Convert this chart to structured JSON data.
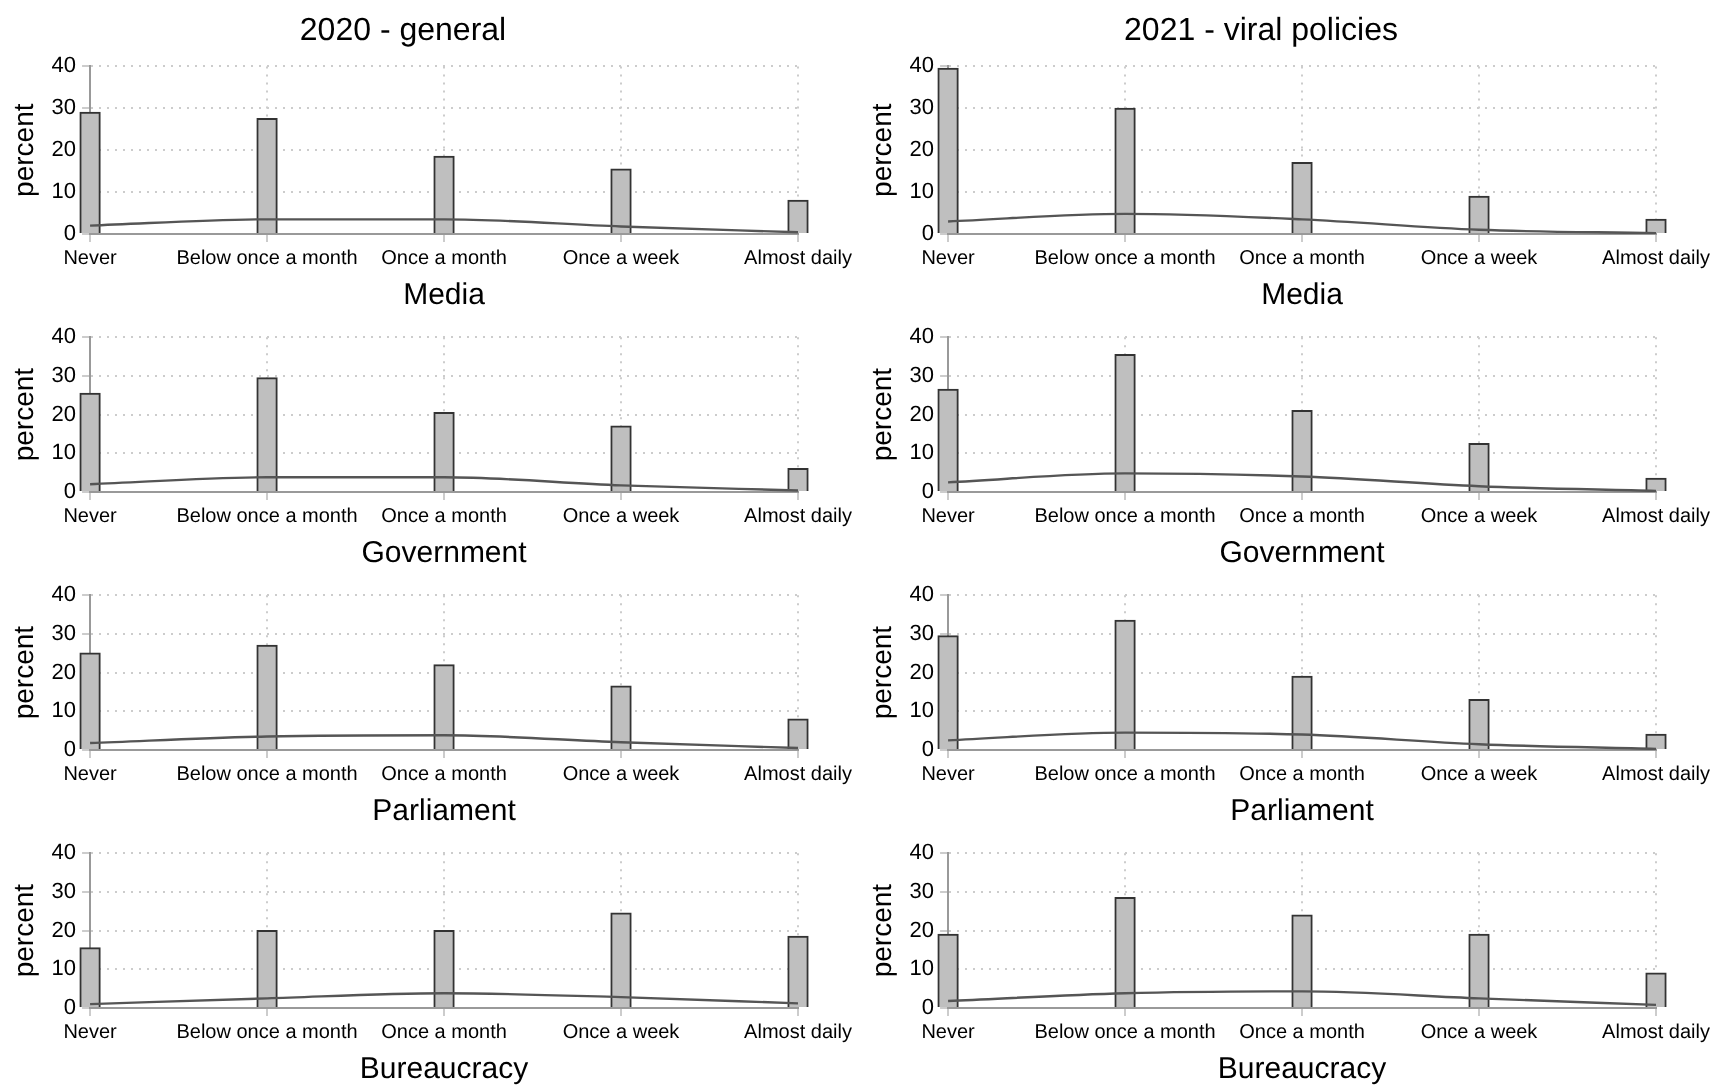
{
  "chart_data": [
    {
      "type": "bar",
      "title": "2020 - general",
      "xlabel": "Media",
      "ylabel": "percent",
      "categories": [
        "Never",
        "Below once a month",
        "Once a month",
        "Once a week",
        "Almost daily"
      ],
      "ylim": [
        0,
        40
      ],
      "yticks": [
        0,
        10,
        20,
        30,
        40
      ],
      "grid": true,
      "marker": "none",
      "series": [
        {
          "color": "#bfbfbf",
          "values": [
            29,
            27.5,
            18.5,
            15.5,
            8
          ]
        },
        {
          "type": "line",
          "color": "#555555",
          "values": [
            2,
            3.5,
            3.5,
            1.8,
            0.4
          ]
        }
      ]
    },
    {
      "type": "bar",
      "title": "2021 - viral policies",
      "xlabel": "Media",
      "ylabel": "percent",
      "categories": [
        "Never",
        "Below once a month",
        "Once a month",
        "Once a week",
        "Almost daily"
      ],
      "ylim": [
        0,
        40
      ],
      "yticks": [
        0,
        10,
        20,
        30,
        40
      ],
      "grid": true,
      "marker": "none",
      "series": [
        {
          "color": "#bfbfbf",
          "values": [
            39.5,
            30,
            17,
            9,
            3.5
          ]
        },
        {
          "type": "line",
          "color": "#555555",
          "values": [
            3,
            4.8,
            3.5,
            1,
            0.2
          ]
        }
      ]
    },
    {
      "type": "bar",
      "xlabel": "Government",
      "ylabel": "percent",
      "categories": [
        "Never",
        "Below once a month",
        "Once a month",
        "Once a week",
        "Almost daily"
      ],
      "ylim": [
        0,
        40
      ],
      "yticks": [
        0,
        10,
        20,
        30,
        40
      ],
      "grid": true,
      "marker": "none",
      "series": [
        {
          "color": "#bfbfbf",
          "values": [
            25.5,
            29.5,
            20.5,
            17,
            6
          ]
        },
        {
          "type": "line",
          "color": "#555555",
          "values": [
            2,
            3.8,
            3.8,
            1.7,
            0.4
          ]
        }
      ]
    },
    {
      "type": "bar",
      "xlabel": "Government",
      "ylabel": "percent",
      "categories": [
        "Never",
        "Below once a month",
        "Once a month",
        "Once a week",
        "Almost daily"
      ],
      "ylim": [
        0,
        40
      ],
      "yticks": [
        0,
        10,
        20,
        30,
        40
      ],
      "grid": true,
      "marker": "none",
      "series": [
        {
          "color": "#bfbfbf",
          "values": [
            26.5,
            35.5,
            21,
            12.5,
            3.5
          ]
        },
        {
          "type": "line",
          "color": "#555555",
          "values": [
            2.5,
            4.8,
            4,
            1.5,
            0.3
          ]
        }
      ]
    },
    {
      "type": "bar",
      "xlabel": "Parliament",
      "ylabel": "percent",
      "categories": [
        "Never",
        "Below once a month",
        "Once a month",
        "Once a week",
        "Almost daily"
      ],
      "ylim": [
        0,
        40
      ],
      "yticks": [
        0,
        10,
        20,
        30,
        40
      ],
      "grid": true,
      "marker": "none",
      "series": [
        {
          "color": "#bfbfbf",
          "values": [
            25,
            27,
            22,
            16.5,
            8
          ]
        },
        {
          "type": "line",
          "color": "#555555",
          "values": [
            1.8,
            3.5,
            3.8,
            2,
            0.5
          ]
        }
      ]
    },
    {
      "type": "bar",
      "xlabel": "Parliament",
      "ylabel": "percent",
      "categories": [
        "Never",
        "Below once a month",
        "Once a month",
        "Once a week",
        "Almost daily"
      ],
      "ylim": [
        0,
        40
      ],
      "yticks": [
        0,
        10,
        20,
        30,
        40
      ],
      "grid": true,
      "marker": "none",
      "series": [
        {
          "color": "#bfbfbf",
          "values": [
            29.5,
            33.5,
            19,
            13,
            4
          ]
        },
        {
          "type": "line",
          "color": "#555555",
          "values": [
            2.5,
            4.5,
            4,
            1.5,
            0.3
          ]
        }
      ]
    },
    {
      "type": "bar",
      "xlabel": "Bureaucracy",
      "ylabel": "percent",
      "categories": [
        "Never",
        "Below once a month",
        "Once a month",
        "Once a week",
        "Almost daily"
      ],
      "ylim": [
        0,
        40
      ],
      "yticks": [
        0,
        10,
        20,
        30,
        40
      ],
      "grid": true,
      "marker": "none",
      "series": [
        {
          "color": "#bfbfbf",
          "values": [
            15.5,
            20,
            20,
            24.5,
            18.5
          ]
        },
        {
          "type": "line",
          "color": "#555555",
          "values": [
            1,
            2.5,
            3.8,
            2.8,
            1.2
          ]
        }
      ]
    },
    {
      "type": "bar",
      "xlabel": "Bureaucracy",
      "ylabel": "percent",
      "categories": [
        "Never",
        "Below once a month",
        "Once a month",
        "Once a week",
        "Almost daily"
      ],
      "ylim": [
        0,
        40
      ],
      "yticks": [
        0,
        10,
        20,
        30,
        40
      ],
      "grid": true,
      "marker": "none",
      "series": [
        {
          "color": "#bfbfbf",
          "values": [
            19,
            28.5,
            24,
            19,
            9
          ]
        },
        {
          "type": "line",
          "color": "#555555",
          "values": [
            1.8,
            3.8,
            4.3,
            2.5,
            0.8
          ]
        }
      ]
    }
  ]
}
